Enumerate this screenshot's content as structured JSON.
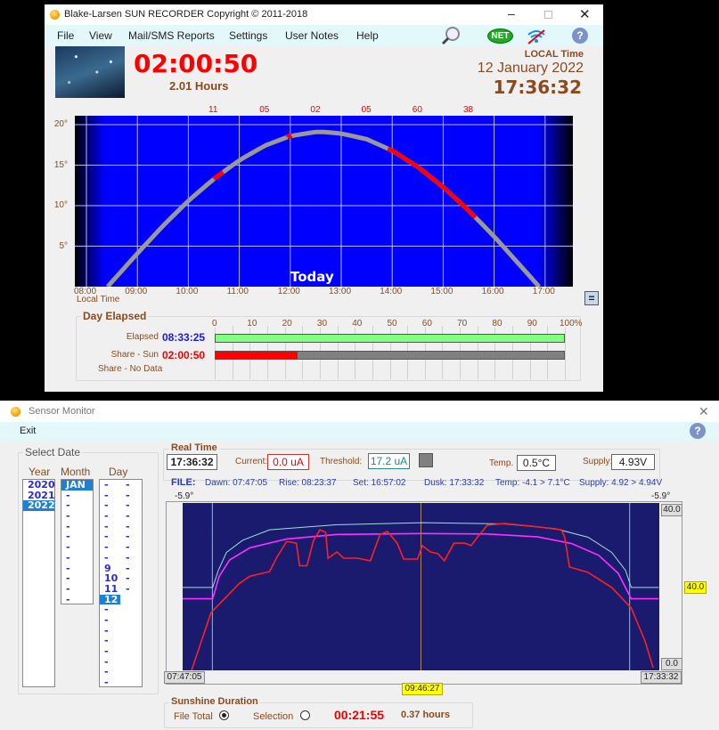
{
  "main_window": {
    "title": "Blake-Larsen SUN RECORDER  Copyright ©  2011-2018",
    "menu": [
      "File",
      "View",
      "Mail/SMS Reports",
      "Settings",
      "User Notes",
      "Help"
    ],
    "toolbar_icons": [
      "search-icon",
      "net-icon",
      "wifi-off-icon",
      "help-icon"
    ],
    "net_label": "NET",
    "help_label": "?",
    "sunshine_time": "02:00:50",
    "sunshine_hours": "2.01 Hours",
    "local_time_label": "LOCAL Time",
    "date": "12 January 2022",
    "clock": "17:36:32",
    "equals_button": "=",
    "day_elapsed": {
      "title": "Day Elapsed",
      "scale": [
        "0",
        "10",
        "20",
        "30",
        "40",
        "50",
        "60",
        "70",
        "80",
        "90",
        "100%"
      ],
      "elapsed_label": "Elapsed",
      "elapsed_value": "08:33:25",
      "elapsed_percent": 100,
      "share_sun_label": "Share - Sun",
      "share_sun_value": "02:00:50",
      "share_sun_percent": 23.5,
      "share_nodata_label": "Share - No Data"
    }
  },
  "chart_data": [
    {
      "type": "line",
      "title": "Today",
      "xlabel": "Local Time",
      "x_ticks": [
        "08:00",
        "09:00",
        "10:00",
        "11:00",
        "12:00",
        "13:00",
        "14:00",
        "15:00",
        "16:00",
        "17:00"
      ],
      "y_ticks": [
        "5°",
        "10°",
        "15°",
        "20°"
      ],
      "ylim": [
        0,
        20
      ],
      "grid": true,
      "hourly_sun_minutes": [
        {
          "hour": "10:00",
          "label": "11"
        },
        {
          "hour": "11:00",
          "label": "05"
        },
        {
          "hour": "12:00",
          "label": "02"
        },
        {
          "hour": "13:00",
          "label": "05"
        },
        {
          "hour": "14:00",
          "label": "60"
        },
        {
          "hour": "15:00",
          "label": "38"
        }
      ],
      "sun_elevation": [
        [
          "08:25",
          0
        ],
        [
          "08:30",
          0.6
        ],
        [
          "09:00",
          4.1
        ],
        [
          "09:30",
          7.5
        ],
        [
          "10:00",
          10.6
        ],
        [
          "10:30",
          13.3
        ],
        [
          "11:00",
          15.6
        ],
        [
          "11:30",
          17.4
        ],
        [
          "12:00",
          18.6
        ],
        [
          "12:30",
          19.1
        ],
        [
          "12:40",
          19.1
        ],
        [
          "13:00",
          18.9
        ],
        [
          "13:30",
          18.2
        ],
        [
          "14:00",
          16.8
        ],
        [
          "14:30",
          14.8
        ],
        [
          "15:00",
          12.3
        ],
        [
          "15:30",
          9.4
        ],
        [
          "16:00",
          6.2
        ],
        [
          "16:30",
          2.7
        ],
        [
          "16:53",
          0
        ]
      ],
      "sunshine_segments": [
        [
          "10:30",
          "10:41"
        ],
        [
          "11:57",
          "12:01"
        ],
        [
          "13:55",
          "15:38"
        ]
      ],
      "colors": {
        "sky": "#0000ff",
        "path": "#999999",
        "sunshine": "#ff0000"
      }
    },
    {
      "type": "line",
      "x_start": "07:47:05",
      "x_end": "17:33:32",
      "span_label": "09:46:27",
      "ylim": [
        0,
        40
      ],
      "y_top_label": "40.0",
      "y_bottom_label": "0.0",
      "marker_label": "40.0",
      "corner_labels": [
        "-5.9°",
        "-5.9°"
      ],
      "markers": {
        "rise": "08:23:37",
        "noon": "12:40:18",
        "set": "16:57:02"
      },
      "series": [
        {
          "color": "#ff2020",
          "points": [
            [
              "07:58",
              0
            ],
            [
              "08:22",
              13.8
            ],
            [
              "08:57",
              20.8
            ],
            [
              "09:10",
              22.5
            ],
            [
              "09:34",
              23.6
            ],
            [
              "09:43",
              27
            ],
            [
              "09:55",
              30.8
            ],
            [
              "10:07",
              30.4
            ],
            [
              "10:11",
              25
            ],
            [
              "10:20",
              25
            ],
            [
              "10:28",
              31
            ],
            [
              "10:36",
              33.6
            ],
            [
              "10:43",
              33
            ],
            [
              "10:46",
              26.8
            ],
            [
              "10:57",
              28.3
            ],
            [
              "11:05",
              26.8
            ],
            [
              "11:22",
              26.8
            ],
            [
              "11:38",
              26.2
            ],
            [
              "11:50",
              32.5
            ],
            [
              "11:59",
              33.2
            ],
            [
              "12:11",
              30.4
            ],
            [
              "12:19",
              26.6
            ],
            [
              "12:36",
              26.6
            ],
            [
              "12:42",
              29.8
            ],
            [
              "12:52",
              28.3
            ],
            [
              "13:01",
              27.9
            ],
            [
              "13:09",
              26.2
            ],
            [
              "13:21",
              30.4
            ],
            [
              "13:34",
              30.4
            ],
            [
              "13:42",
              29.8
            ],
            [
              "13:50",
              31.9
            ],
            [
              "14:02",
              34.7
            ],
            [
              "14:23",
              35.1
            ],
            [
              "15:04",
              34.3
            ],
            [
              "15:33",
              33.6
            ],
            [
              "15:37",
              31.9
            ],
            [
              "15:43",
              24.7
            ],
            [
              "16:06",
              23.4
            ],
            [
              "16:35",
              19.8
            ],
            [
              "16:59",
              14.9
            ],
            [
              "17:16",
              7
            ],
            [
              "17:26",
              0.6
            ]
          ]
        },
        {
          "color": "#9ee0d8",
          "points": [
            [
              "07:47",
              19.8
            ],
            [
              "08:24",
              19.8
            ],
            [
              "08:31",
              23.9
            ],
            [
              "08:41",
              28.2
            ],
            [
              "09:01",
              31.1
            ],
            [
              "09:34",
              33.6
            ],
            [
              "10:57",
              34.8
            ],
            [
              "12:42",
              35.3
            ],
            [
              "14:23",
              35
            ],
            [
              "15:25",
              33.9
            ],
            [
              "16:06",
              31.8
            ],
            [
              "16:35",
              28.2
            ],
            [
              "16:52",
              23.9
            ],
            [
              "16:59",
              19.8
            ],
            [
              "17:33",
              19.8
            ]
          ]
        },
        {
          "color": "#ff30ff",
          "points": [
            [
              "07:47",
              17.1
            ],
            [
              "08:24",
              17.1
            ],
            [
              "08:32",
              22.5
            ],
            [
              "08:45",
              26.4
            ],
            [
              "09:10",
              29.3
            ],
            [
              "09:55",
              31.4
            ],
            [
              "10:57",
              32.5
            ],
            [
              "12:42",
              32.7
            ],
            [
              "14:02",
              32.6
            ],
            [
              "15:04",
              31.9
            ],
            [
              "15:46",
              30.3
            ],
            [
              "16:19",
              27.5
            ],
            [
              "16:43",
              23.2
            ],
            [
              "16:59",
              17.1
            ],
            [
              "17:33",
              17.1
            ]
          ]
        }
      ]
    }
  ],
  "sensor_window": {
    "title": "Sensor Monitor",
    "menu_exit": "Exit",
    "help_label": "?",
    "close_label": "✕",
    "select_date": {
      "title": "Select Date",
      "year_header": "Year",
      "month_header": "Month",
      "day_header": "Day",
      "years": [
        "2020",
        "2021",
        "2022"
      ],
      "selected_year": "2022",
      "months": [
        "JAN",
        "-",
        "-",
        "-",
        "-",
        "-",
        "-",
        "-",
        "-",
        "-",
        "-",
        "-"
      ],
      "selected_month": "JAN",
      "days_col1": [
        "-",
        "-",
        "-",
        "-",
        "-",
        "-",
        "-",
        "-",
        "9",
        "10",
        "11",
        "12",
        "-",
        "-",
        "-",
        "-",
        "-",
        "-",
        "-",
        "-"
      ],
      "days_col2": [
        "-",
        "-",
        "-",
        "-",
        "-",
        "-",
        "-",
        "-",
        "-",
        "-",
        "-"
      ],
      "selected_day": "12"
    },
    "real_time": {
      "title": "Real Time",
      "time": "17:36:32",
      "current_label": "Current:",
      "current_value": "0.0 uA",
      "threshold_label": "Threshold:",
      "threshold_value": "17.2 uA",
      "temp_label": "Temp.",
      "temp_value": "0.5°C",
      "supply_label": "Supply:",
      "supply_value": "4.93V"
    },
    "file": {
      "label": "FILE:",
      "dawn": "Dawn:  07:47:05",
      "rise": "Rise:  08:23:37",
      "set": "Set:   16:57:02",
      "dusk": "Dusk:  17:33:32",
      "temp": "Temp: -4.1 > 7.1°C",
      "supply": "Supply: 4.92 > 4.94V"
    },
    "sunshine_duration": {
      "title": "Sunshine Duration",
      "file_total_label": "File Total",
      "file_total_selected": true,
      "selection_label": "Selection",
      "selection_selected": false,
      "duration": "00:21:55",
      "hours": "0.37 hours"
    }
  }
}
